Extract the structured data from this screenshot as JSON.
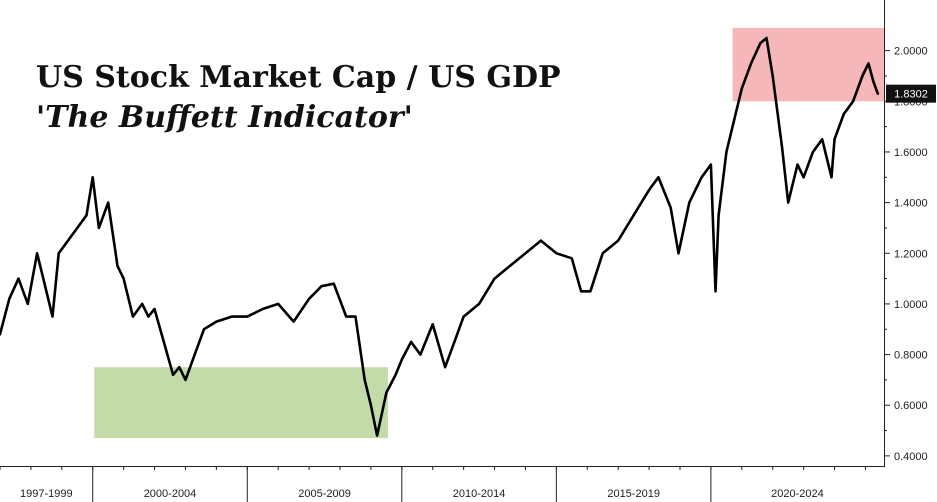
{
  "chart_data": {
    "type": "line",
    "title": "US Stock Market Cap / US GDP",
    "subtitle": "'The Buffett Indicator'",
    "xlabel": "",
    "ylabel": "",
    "ylim": [
      0.36,
      2.2
    ],
    "xlim": [
      1997.0,
      2025.6
    ],
    "y_ticks": [
      "0.4000",
      "0.6000",
      "0.8000",
      "1.0000",
      "1.2000",
      "1.4000",
      "1.6000",
      "1.8000",
      "2.0000"
    ],
    "x_periods": [
      {
        "label": "1997-1999",
        "start": 1997.0,
        "end": 2000.0
      },
      {
        "label": "2000-2004",
        "start": 2000.0,
        "end": 2005.0
      },
      {
        "label": "2005-2009",
        "start": 2005.0,
        "end": 2010.0
      },
      {
        "label": "2010-2014",
        "start": 2010.0,
        "end": 2015.0
      },
      {
        "label": "2015-2019",
        "start": 2015.0,
        "end": 2020.0
      },
      {
        "label": "2020-2024",
        "start": 2020.0,
        "end": 2025.6
      }
    ],
    "last_value_label": "1.8302",
    "last_value": 1.8302,
    "grid": false,
    "series": [
      {
        "color": "#000000",
        "x": [
          1997.0,
          1997.3,
          1997.6,
          1997.9,
          1998.2,
          1998.5,
          1998.7,
          1998.9,
          1999.2,
          1999.5,
          1999.8,
          2000.0,
          2000.2,
          2000.5,
          2000.8,
          2001.0,
          2001.3,
          2001.6,
          2001.8,
          2002.0,
          2002.3,
          2002.6,
          2002.8,
          2003.0,
          2003.3,
          2003.6,
          2004.0,
          2004.5,
          2005.0,
          2005.5,
          2006.0,
          2006.5,
          2007.0,
          2007.4,
          2007.8,
          2008.2,
          2008.5,
          2008.8,
          2009.0,
          2009.2,
          2009.5,
          2009.8,
          2010.0,
          2010.3,
          2010.6,
          2011.0,
          2011.4,
          2011.7,
          2012.0,
          2012.5,
          2013.0,
          2013.5,
          2014.0,
          2014.5,
          2015.0,
          2015.5,
          2015.8,
          2016.1,
          2016.5,
          2017.0,
          2017.5,
          2018.0,
          2018.3,
          2018.7,
          2018.95,
          2019.3,
          2019.7,
          2020.0,
          2020.15,
          2020.25,
          2020.5,
          2020.8,
          2021.0,
          2021.3,
          2021.6,
          2021.8,
          2022.0,
          2022.3,
          2022.5,
          2022.8,
          2023.0,
          2023.3,
          2023.6,
          2023.9,
          2024.0,
          2024.3,
          2024.6,
          2024.9,
          2025.1,
          2025.25,
          2025.4
        ],
        "values": [
          0.88,
          1.02,
          1.1,
          1.0,
          1.2,
          1.05,
          0.95,
          1.2,
          1.25,
          1.3,
          1.35,
          1.5,
          1.3,
          1.4,
          1.15,
          1.1,
          0.95,
          1.0,
          0.95,
          0.98,
          0.85,
          0.72,
          0.75,
          0.7,
          0.8,
          0.9,
          0.93,
          0.95,
          0.95,
          0.98,
          1.0,
          0.93,
          1.02,
          1.07,
          1.08,
          0.95,
          0.95,
          0.7,
          0.6,
          0.48,
          0.65,
          0.72,
          0.78,
          0.85,
          0.8,
          0.92,
          0.75,
          0.85,
          0.95,
          1.0,
          1.1,
          1.15,
          1.2,
          1.25,
          1.2,
          1.18,
          1.05,
          1.05,
          1.2,
          1.25,
          1.35,
          1.45,
          1.5,
          1.38,
          1.2,
          1.4,
          1.5,
          1.55,
          1.05,
          1.35,
          1.6,
          1.75,
          1.85,
          1.95,
          2.03,
          2.05,
          1.9,
          1.62,
          1.4,
          1.55,
          1.5,
          1.6,
          1.65,
          1.5,
          1.65,
          1.75,
          1.8,
          1.9,
          1.95,
          1.88,
          1.83
        ]
      }
    ],
    "highlights": [
      {
        "color": "#c3dba9",
        "x0": 2000.05,
        "x1": 2009.55,
        "y0": 0.47,
        "y1": 0.75
      },
      {
        "color": "#f6b7bb",
        "x0": 2020.7,
        "x1": 2025.6,
        "y0": 1.8,
        "y1": 2.09
      }
    ]
  }
}
